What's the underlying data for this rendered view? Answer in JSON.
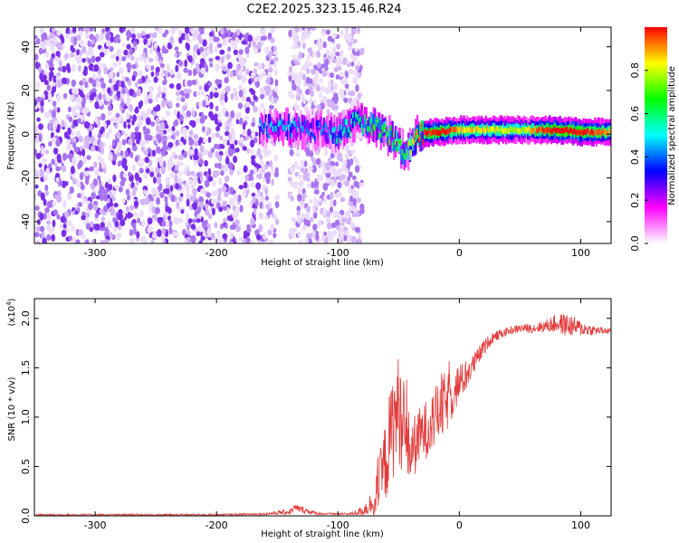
{
  "title": "C2E2.2025.323.15.46.R24",
  "colors": {
    "signal": "#e23b3b",
    "noise": "#7a2ee8",
    "frame": "#000000",
    "colorbar": [
      "#ffffff",
      "#ff80ff",
      "#ff00ff",
      "#8000ff",
      "#0000ff",
      "#0080ff",
      "#00ffff",
      "#00ff80",
      "#00ff00",
      "#80ff00",
      "#ffff00",
      "#ff8000",
      "#ff0000"
    ]
  },
  "chart_data": [
    {
      "id": "spectrogram",
      "type": "heatmap",
      "title": "C2E2.2025.323.15.46.R24",
      "xlabel": "Height of straight line (km)",
      "ylabel": "Frequency (Hz)",
      "xlim": [
        -350,
        125
      ],
      "ylim": [
        -50,
        49
      ],
      "xticks": [
        -300,
        -200,
        -100,
        0,
        100
      ],
      "xtick_labels": [
        "-300",
        "-200",
        "-100",
        "0",
        "100"
      ],
      "yticks": [
        -40,
        -20,
        0,
        20,
        40
      ],
      "ytick_labels": [
        "-40",
        "-20",
        "0",
        "20",
        "40"
      ],
      "noise_region_km": [
        -350,
        -90
      ],
      "gap_region_km": [
        -150,
        -140
      ],
      "ridge": {
        "description": "narrowband signal near 0 Hz",
        "x": [
          -165,
          -140,
          -120,
          -100,
          -85,
          -70,
          -55,
          -45,
          -35,
          -20,
          0,
          20,
          50,
          80,
          100,
          125
        ],
        "freq_hz": [
          3,
          3,
          2,
          0,
          6,
          4,
          -2,
          -9,
          0,
          1,
          2,
          2,
          2,
          2,
          1,
          1
        ],
        "amplitude": [
          0.35,
          0.4,
          0.3,
          0.45,
          0.5,
          0.55,
          0.6,
          0.55,
          0.8,
          0.85,
          0.75,
          0.7,
          0.65,
          0.9,
          0.85,
          0.75
        ]
      },
      "colorbar": {
        "label": "Normalized spectral amplitude",
        "range": [
          0.0,
          1.0
        ],
        "ticks": [
          0.0,
          0.2,
          0.4,
          0.6,
          0.8
        ],
        "tick_labels": [
          "0.0",
          "0.2",
          "0.4",
          "0.6",
          "0.8"
        ]
      }
    },
    {
      "id": "snr",
      "type": "line",
      "xlabel": "Height of straight line (km)",
      "ylabel": "SNR (10 * v/v)",
      "y_scale_label": "(x10",
      "y_scale_exp": "4",
      "y_scale_close": ")",
      "xlim": [
        -350,
        125
      ],
      "ylim": [
        0.0,
        2.2
      ],
      "xticks": [
        -300,
        -200,
        -100,
        0,
        100
      ],
      "xtick_labels": [
        "-300",
        "-200",
        "-100",
        "0",
        "100"
      ],
      "yticks": [
        0.0,
        0.5,
        1.0,
        1.5,
        2.0
      ],
      "ytick_labels": [
        "0.0",
        "0.5",
        "1.0",
        "1.5",
        "2.0"
      ],
      "series": [
        {
          "name": "SNR",
          "x": [
            -350,
            -300,
            -250,
            -200,
            -160,
            -140,
            -135,
            -125,
            -120,
            -110,
            -100,
            -90,
            -80,
            -70,
            -65,
            -60,
            -55,
            -50,
            -45,
            -40,
            -35,
            -30,
            -25,
            -20,
            -15,
            -10,
            -5,
            0,
            5,
            10,
            15,
            20,
            25,
            30,
            40,
            50,
            60,
            70,
            80,
            90,
            100,
            110,
            125
          ],
          "y": [
            0.01,
            0.01,
            0.01,
            0.01,
            0.02,
            0.04,
            0.08,
            0.05,
            0.03,
            0.02,
            0.02,
            0.02,
            0.05,
            0.15,
            0.35,
            0.6,
            0.9,
            1.1,
            0.8,
            0.65,
            0.75,
            0.85,
            0.9,
            1.0,
            1.1,
            1.15,
            1.25,
            1.35,
            1.4,
            1.5,
            1.6,
            1.7,
            1.78,
            1.82,
            1.87,
            1.9,
            1.9,
            1.92,
            1.95,
            1.93,
            1.9,
            1.88,
            1.87
          ],
          "noise_amp": [
            0.01,
            0.01,
            0.01,
            0.01,
            0.01,
            0.03,
            0.04,
            0.03,
            0.02,
            0.01,
            0.01,
            0.01,
            0.05,
            0.15,
            0.3,
            0.45,
            0.55,
            0.55,
            0.45,
            0.35,
            0.3,
            0.3,
            0.3,
            0.3,
            0.35,
            0.3,
            0.25,
            0.2,
            0.15,
            0.12,
            0.1,
            0.08,
            0.06,
            0.05,
            0.04,
            0.04,
            0.05,
            0.06,
            0.1,
            0.12,
            0.08,
            0.05,
            0.03
          ]
        }
      ]
    }
  ]
}
